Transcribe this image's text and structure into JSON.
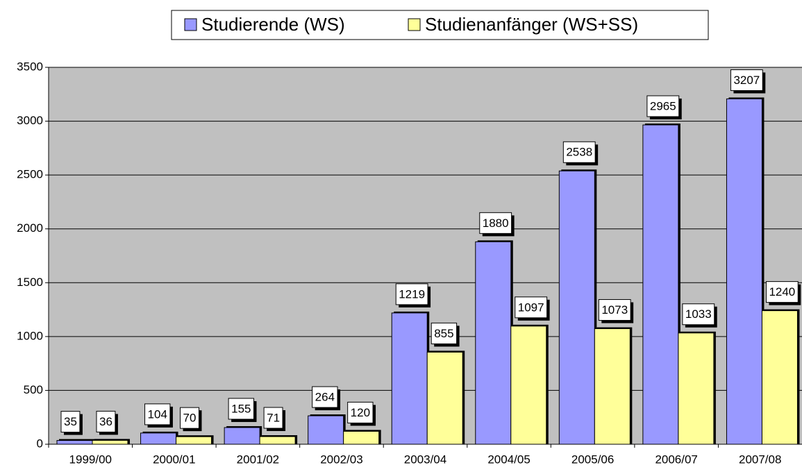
{
  "chart_data": {
    "type": "bar",
    "categories": [
      "1999/00",
      "2000/01",
      "2001/02",
      "2002/03",
      "2003/04",
      "2004/05",
      "2005/06",
      "2006/07",
      "2007/08"
    ],
    "series": [
      {
        "name": "Studierende (WS)",
        "color": "#9999ff",
        "values": [
          35,
          104,
          155,
          264,
          1219,
          1880,
          2538,
          2965,
          3207
        ]
      },
      {
        "name": "Studienanfänger (WS+SS)",
        "color": "#ffff99",
        "values": [
          36,
          70,
          71,
          120,
          855,
          1097,
          1073,
          1033,
          1240
        ]
      }
    ],
    "ylim": [
      0,
      3500
    ],
    "yticks": [
      0,
      500,
      1000,
      1500,
      2000,
      2500,
      3000,
      3500
    ],
    "grid": true,
    "legend": "top"
  }
}
